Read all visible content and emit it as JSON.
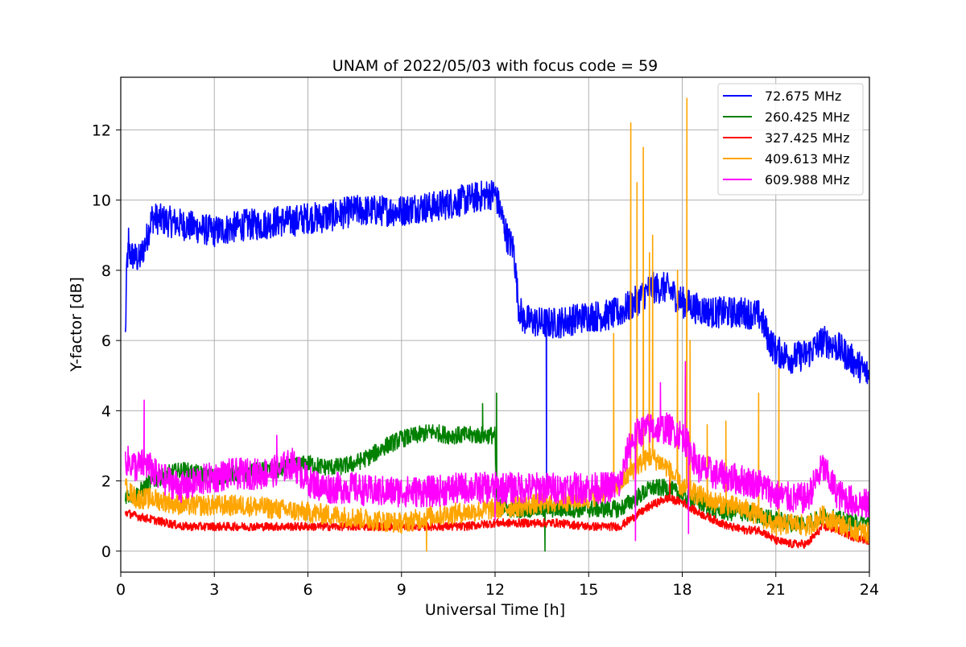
{
  "chart_data": {
    "type": "line",
    "title": "UNAM of 2022/05/03 with focus code = 59",
    "xlabel": "Universal Time [h]",
    "ylabel": "Y-factor [dB]",
    "xlim": [
      0,
      24
    ],
    "ylim": [
      -0.6,
      13.5
    ],
    "xticks": [
      0,
      3,
      6,
      9,
      12,
      15,
      18,
      21,
      24
    ],
    "yticks": [
      0,
      2,
      4,
      6,
      8,
      10,
      12
    ],
    "grid": true,
    "legend_position": "top-right",
    "series": [
      {
        "name": " 72.675 MHz",
        "color": "#0000ff",
        "noise": 0.45,
        "x": [
          0.15,
          0.2,
          0.25,
          0.4,
          0.6,
          0.8,
          1.0,
          1.5,
          2,
          2.5,
          3,
          3.5,
          4,
          4.5,
          5,
          5.5,
          6,
          6.5,
          7,
          7.5,
          8,
          8.5,
          9,
          9.5,
          10,
          10.5,
          11,
          11.5,
          12,
          12.2,
          12.4,
          12.6,
          12.75,
          12.9,
          13.5,
          14,
          14.5,
          15,
          15.5,
          16,
          16.5,
          17,
          17.5,
          18,
          18.5,
          19,
          19.5,
          20,
          20.5,
          20.8,
          21,
          21.5,
          22,
          22.5,
          23,
          23.5,
          24
        ],
        "y": [
          6.1,
          8.3,
          8.5,
          8.4,
          8.3,
          8.8,
          9.5,
          9.4,
          9.3,
          9.2,
          9.1,
          9.2,
          9.3,
          9.3,
          9.4,
          9.4,
          9.5,
          9.5,
          9.6,
          9.7,
          9.7,
          9.7,
          9.7,
          9.8,
          9.8,
          9.9,
          10.0,
          10.1,
          10.2,
          9.6,
          8.9,
          8.6,
          7.0,
          6.6,
          6.5,
          6.5,
          6.6,
          6.7,
          6.7,
          6.8,
          7.1,
          7.5,
          7.5,
          7.1,
          6.9,
          6.8,
          6.8,
          6.8,
          6.7,
          6.0,
          5.7,
          5.5,
          5.6,
          6.0,
          5.8,
          5.4,
          5.0
        ]
      },
      {
        "name": "260.425 MHz",
        "color": "#008000",
        "noise": 0.25,
        "x": [
          0.15,
          0.5,
          1,
          1.5,
          2,
          2.5,
          3,
          3.5,
          4,
          4.5,
          5,
          5.5,
          6,
          6.5,
          7,
          7.5,
          8,
          8.5,
          9,
          9.5,
          10,
          10.5,
          11,
          11.5,
          12,
          12.05,
          12.5,
          13,
          13.5,
          14,
          14.5,
          15,
          15.5,
          16,
          16.5,
          17,
          17.5,
          18,
          18.5,
          19,
          19.5,
          20,
          20.5,
          21,
          21.5,
          22,
          22.5,
          23,
          23.5,
          24
        ],
        "y": [
          1.6,
          1.6,
          2.0,
          2.2,
          2.3,
          2.2,
          2.1,
          2.2,
          2.2,
          2.3,
          2.3,
          2.4,
          2.5,
          2.4,
          2.4,
          2.5,
          2.7,
          3.0,
          3.2,
          3.3,
          3.4,
          3.3,
          3.3,
          3.3,
          3.3,
          1.3,
          1.2,
          1.2,
          1.2,
          1.2,
          1.2,
          1.2,
          1.2,
          1.2,
          1.5,
          1.8,
          1.8,
          1.6,
          1.4,
          1.2,
          1.1,
          1.1,
          1.0,
          0.9,
          0.8,
          0.8,
          1.0,
          0.9,
          0.8,
          0.8
        ]
      },
      {
        "name": "327.425 MHz",
        "color": "#ff0000",
        "noise": 0.12,
        "x": [
          0.15,
          0.5,
          1,
          1.5,
          2,
          3,
          4,
          5,
          6,
          7,
          8,
          9,
          10,
          11,
          12,
          13,
          14,
          15,
          15.5,
          16,
          16.5,
          17,
          17.5,
          18,
          18.5,
          19,
          19.5,
          20,
          20.5,
          21,
          21.5,
          22,
          22.5,
          23,
          23.5,
          24
        ],
        "y": [
          1.1,
          1.0,
          0.9,
          0.8,
          0.7,
          0.7,
          0.7,
          0.7,
          0.7,
          0.7,
          0.7,
          0.7,
          0.7,
          0.7,
          0.8,
          0.8,
          0.8,
          0.7,
          0.7,
          0.7,
          1.0,
          1.3,
          1.5,
          1.4,
          1.1,
          0.9,
          0.7,
          0.6,
          0.6,
          0.3,
          0.2,
          0.2,
          0.7,
          0.6,
          0.4,
          0.3
        ]
      },
      {
        "name": "409.613 MHz",
        "color": "#ffa500",
        "noise": 0.3,
        "x": [
          0.15,
          0.5,
          1,
          1.5,
          2,
          2.5,
          3,
          4,
          5,
          6,
          7,
          8,
          9,
          10,
          11,
          12,
          13,
          14,
          15,
          16,
          16.5,
          17,
          17.5,
          18,
          18.5,
          19,
          19.5,
          20,
          20.5,
          21,
          21.5,
          22,
          22.5,
          23,
          23.5,
          24
        ],
        "y": [
          1.8,
          1.5,
          1.5,
          1.4,
          1.3,
          1.3,
          1.3,
          1.3,
          1.2,
          1.1,
          1.0,
          0.9,
          0.8,
          1.0,
          1.1,
          1.2,
          1.3,
          1.4,
          1.5,
          1.9,
          2.4,
          2.7,
          2.4,
          1.8,
          1.6,
          1.4,
          1.3,
          1.2,
          1.0,
          0.7,
          0.8,
          0.7,
          1.0,
          0.8,
          0.6,
          0.5
        ]
      },
      {
        "name": "609.988 MHz",
        "color": "#ff00ff",
        "noise": 0.45,
        "x": [
          0.15,
          0.5,
          0.8,
          1.2,
          1.5,
          2,
          2.5,
          3,
          3.5,
          4,
          4.5,
          5,
          5.5,
          6,
          6.5,
          7,
          7.5,
          8,
          8.5,
          9,
          9.5,
          10,
          11,
          12,
          13,
          14,
          15,
          15.5,
          16,
          16.3,
          16.6,
          17,
          17.5,
          18,
          18.3,
          18.5,
          19,
          19.5,
          20,
          20.5,
          21,
          21.5,
          22,
          22.5,
          23,
          23.5,
          24
        ],
        "y": [
          2.6,
          2.4,
          2.5,
          2.1,
          2.0,
          1.8,
          2.0,
          2.1,
          2.2,
          2.2,
          2.2,
          2.3,
          2.5,
          2.0,
          1.8,
          1.8,
          1.8,
          1.7,
          1.7,
          1.7,
          1.7,
          1.7,
          1.8,
          1.8,
          1.8,
          1.8,
          1.8,
          1.8,
          1.9,
          3.0,
          3.4,
          3.5,
          3.5,
          3.3,
          2.8,
          2.4,
          2.2,
          2.1,
          2.0,
          1.9,
          1.6,
          1.5,
          1.5,
          2.4,
          1.6,
          1.4,
          1.3
        ]
      }
    ],
    "spikes": [
      {
        "series": 0,
        "x": 0.25,
        "y": 9.2
      },
      {
        "series": 0,
        "x": 13.65,
        "y": 1.9
      },
      {
        "series": 1,
        "x": 11.6,
        "y": 4.2
      },
      {
        "series": 1,
        "x": 12.05,
        "y": 4.5
      },
      {
        "series": 1,
        "x": 13.6,
        "y": 0.0
      },
      {
        "series": 2,
        "x": 17.6,
        "y": 2.2
      },
      {
        "series": 3,
        "x": 9.8,
        "y": 0.0
      },
      {
        "series": 3,
        "x": 15.8,
        "y": 6.2
      },
      {
        "series": 3,
        "x": 16.35,
        "y": 12.2
      },
      {
        "series": 3,
        "x": 16.55,
        "y": 10.5
      },
      {
        "series": 3,
        "x": 16.75,
        "y": 11.5
      },
      {
        "series": 3,
        "x": 16.95,
        "y": 8.5
      },
      {
        "series": 3,
        "x": 17.05,
        "y": 9.0
      },
      {
        "series": 3,
        "x": 17.85,
        "y": 8.0
      },
      {
        "series": 3,
        "x": 18.15,
        "y": 12.9
      },
      {
        "series": 3,
        "x": 18.25,
        "y": 6.0
      },
      {
        "series": 3,
        "x": 18.8,
        "y": 3.6
      },
      {
        "series": 3,
        "x": 19.4,
        "y": 3.7
      },
      {
        "series": 3,
        "x": 20.45,
        "y": 4.5
      },
      {
        "series": 3,
        "x": 21.1,
        "y": 5.2
      },
      {
        "series": 4,
        "x": 0.75,
        "y": 4.3
      },
      {
        "series": 4,
        "x": 5.0,
        "y": 3.3
      },
      {
        "series": 4,
        "x": 12.0,
        "y": 0.9
      },
      {
        "series": 4,
        "x": 16.5,
        "y": 0.3
      },
      {
        "series": 4,
        "x": 17.3,
        "y": 4.8
      },
      {
        "series": 4,
        "x": 18.1,
        "y": 5.4
      },
      {
        "series": 4,
        "x": 18.2,
        "y": 0.5
      }
    ]
  }
}
